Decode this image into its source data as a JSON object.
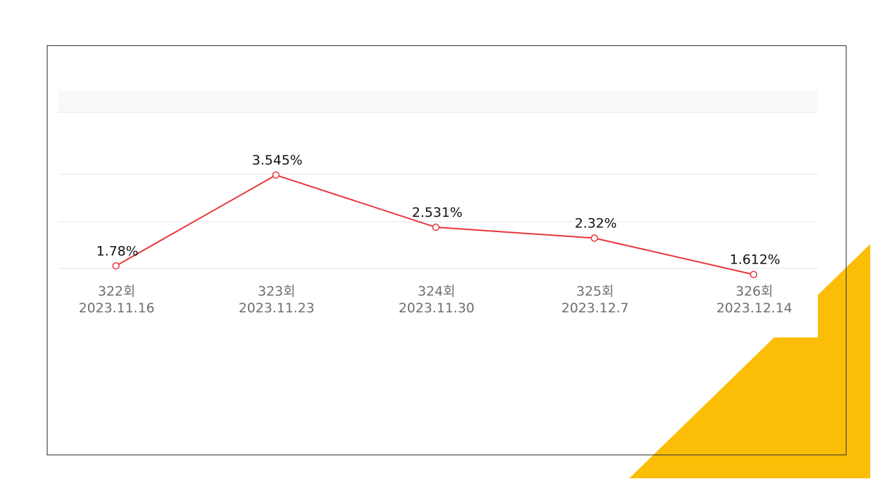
{
  "colors": {
    "line": "#e8353a",
    "accent_triangle": "#fbbd05",
    "frame": "#333333",
    "grid": "#e6e6e6",
    "band": "#f9f9f9"
  },
  "chart_data": {
    "type": "line",
    "categories": [
      [
        "322회",
        "2023.11.16"
      ],
      [
        "323회",
        "2023.11.23"
      ],
      [
        "324회",
        "2023.11.30"
      ],
      [
        "325회",
        "2023.12.7"
      ],
      [
        "326회",
        "2023.12.14"
      ]
    ],
    "series": [
      {
        "values": [
          1.78,
          3.545,
          2.531,
          2.32,
          1.612
        ],
        "labels": [
          "1.78%",
          "3.545%",
          "2.531%",
          "2.32%",
          "1.612%"
        ]
      }
    ],
    "ylim": [
      0,
      5
    ],
    "grid": true,
    "legend": "none",
    "title": "",
    "xlabel": "",
    "ylabel": ""
  }
}
